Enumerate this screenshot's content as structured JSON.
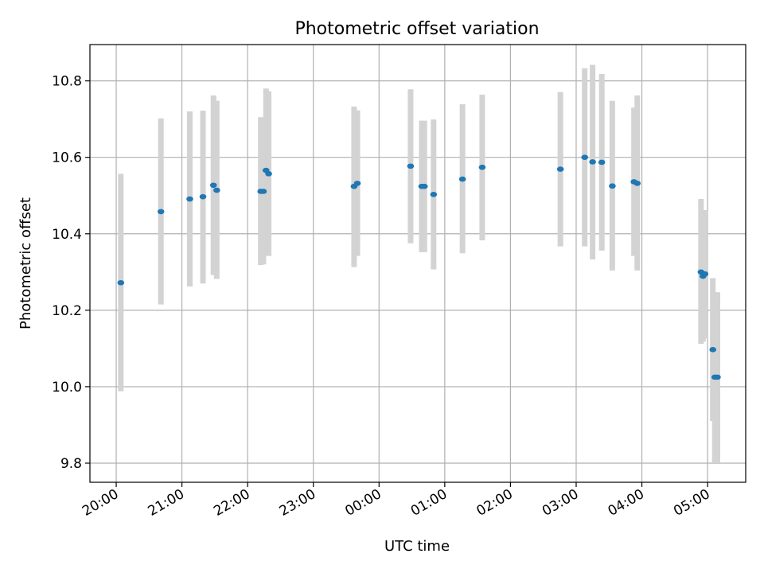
{
  "chart_data": {
    "type": "scatter",
    "title": "Photometric offset variation",
    "xlabel": "UTC time",
    "ylabel": "Photometric offset",
    "x_unit": "hours",
    "xlim": [
      19.6,
      29.58
    ],
    "ylim": [
      9.75,
      10.895
    ],
    "x_ticks": [
      20,
      21,
      22,
      23,
      24,
      25,
      26,
      27,
      28,
      29
    ],
    "x_tick_labels": [
      "20:00",
      "21:00",
      "22:00",
      "23:00",
      "00:00",
      "01:00",
      "02:00",
      "03:00",
      "04:00",
      "05:00"
    ],
    "y_ticks": [
      9.8,
      10.0,
      10.2,
      10.4,
      10.6,
      10.8
    ],
    "y_tick_labels": [
      "9.8",
      "10.0",
      "10.2",
      "10.4",
      "10.6",
      "10.8"
    ],
    "grid": true,
    "colors": {
      "points": "#1f77b4",
      "errorbars": "#d3d3d3",
      "grid": "#b0b0b0"
    },
    "series": [
      {
        "points": [
          {
            "x": 20.07,
            "y": 10.272,
            "lo": 9.988,
            "hi": 10.557
          },
          {
            "x": 20.68,
            "y": 10.458,
            "lo": 10.215,
            "hi": 10.702
          },
          {
            "x": 21.12,
            "y": 10.491,
            "lo": 10.262,
            "hi": 10.72
          },
          {
            "x": 21.32,
            "y": 10.497,
            "lo": 10.27,
            "hi": 10.722
          },
          {
            "x": 21.48,
            "y": 10.527,
            "lo": 10.292,
            "hi": 10.762
          },
          {
            "x": 21.53,
            "y": 10.514,
            "lo": 10.282,
            "hi": 10.748
          },
          {
            "x": 22.2,
            "y": 10.511,
            "lo": 10.318,
            "hi": 10.705
          },
          {
            "x": 22.24,
            "y": 10.511,
            "lo": 10.32,
            "hi": 10.702
          },
          {
            "x": 22.28,
            "y": 10.566,
            "lo": 10.352,
            "hi": 10.78
          },
          {
            "x": 22.32,
            "y": 10.557,
            "lo": 10.342,
            "hi": 10.773
          },
          {
            "x": 23.62,
            "y": 10.524,
            "lo": 10.313,
            "hi": 10.733
          },
          {
            "x": 23.67,
            "y": 10.532,
            "lo": 10.342,
            "hi": 10.723
          },
          {
            "x": 24.48,
            "y": 10.577,
            "lo": 10.375,
            "hi": 10.778
          },
          {
            "x": 24.65,
            "y": 10.524,
            "lo": 10.352,
            "hi": 10.696
          },
          {
            "x": 24.69,
            "y": 10.524,
            "lo": 10.352,
            "hi": 10.696
          },
          {
            "x": 24.83,
            "y": 10.503,
            "lo": 10.307,
            "hi": 10.699
          },
          {
            "x": 25.27,
            "y": 10.543,
            "lo": 10.349,
            "hi": 10.739
          },
          {
            "x": 25.57,
            "y": 10.574,
            "lo": 10.383,
            "hi": 10.764
          },
          {
            "x": 26.76,
            "y": 10.569,
            "lo": 10.367,
            "hi": 10.771
          },
          {
            "x": 27.13,
            "y": 10.6,
            "lo": 10.367,
            "hi": 10.833
          },
          {
            "x": 27.25,
            "y": 10.588,
            "lo": 10.333,
            "hi": 10.842
          },
          {
            "x": 27.39,
            "y": 10.587,
            "lo": 10.356,
            "hi": 10.818
          },
          {
            "x": 27.55,
            "y": 10.525,
            "lo": 10.304,
            "hi": 10.748
          },
          {
            "x": 27.88,
            "y": 10.536,
            "lo": 10.342,
            "hi": 10.73
          },
          {
            "x": 27.93,
            "y": 10.532,
            "lo": 10.304,
            "hi": 10.762
          },
          {
            "x": 28.9,
            "y": 10.3,
            "lo": 10.112,
            "hi": 10.491
          },
          {
            "x": 28.93,
            "y": 10.289,
            "lo": 10.118,
            "hi": 10.462
          },
          {
            "x": 28.96,
            "y": 10.295,
            "lo": 10.126,
            "hi": 10.462
          },
          {
            "x": 29.08,
            "y": 10.097,
            "lo": 9.91,
            "hi": 10.284
          },
          {
            "x": 29.11,
            "y": 10.025,
            "lo": 9.8,
            "hi": 10.247
          },
          {
            "x": 29.15,
            "y": 10.025,
            "lo": 9.8,
            "hi": 10.247
          }
        ]
      }
    ]
  }
}
